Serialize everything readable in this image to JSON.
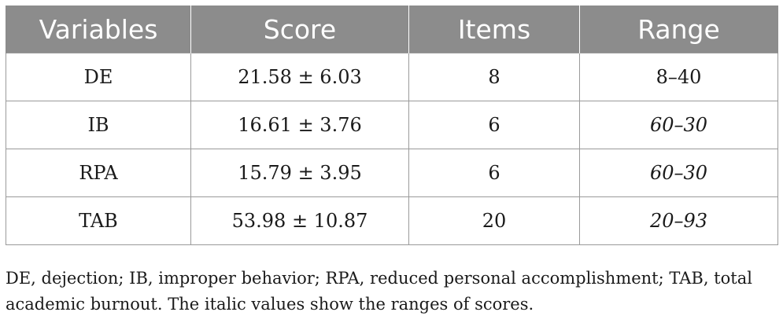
{
  "table": {
    "headers": [
      "Variables",
      "Score",
      "Items",
      "Range"
    ],
    "rows": [
      {
        "variable": "DE",
        "score": "21.58 ± 6.03",
        "items": "8",
        "range": "8–40",
        "range_italic": false
      },
      {
        "variable": "IB",
        "score": "16.61 ± 3.76",
        "items": "6",
        "range": "60–30",
        "range_italic": true
      },
      {
        "variable": "RPA",
        "score": "15.79 ± 3.95",
        "items": "6",
        "range": "60–30",
        "range_italic": true
      },
      {
        "variable": "TAB",
        "score": "53.98 ± 10.87",
        "items": "20",
        "range": "20–93",
        "range_italic": true
      }
    ]
  },
  "footnote": "DE, dejection; IB, improper behavior; RPA, reduced personal accomplishment; TAB, total academic burnout. The italic values show the ranges of scores.",
  "colors": {
    "header_bg": "#8c8c8c",
    "header_text": "#ffffff",
    "border": "#9a9a9a",
    "body_text": "#1a1a1a"
  }
}
